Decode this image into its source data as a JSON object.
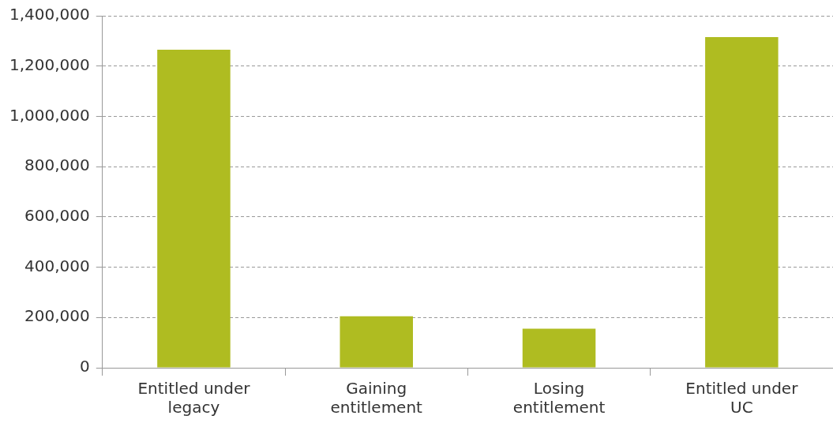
{
  "chart_data": {
    "type": "bar",
    "categories": [
      "Entitled under legacy",
      "Gaining entitlement",
      "Losing entitlement",
      "Entitled under UC"
    ],
    "values": [
      1265000,
      205000,
      155000,
      1315000
    ],
    "color": "#afbc21",
    "ylim": [
      0,
      1400000
    ],
    "yticks": [
      0,
      {
        "value": 200000,
        "label": "200,000"
      },
      {
        "value": 400000,
        "label": "400,000"
      },
      {
        "value": 600000,
        "label": "600,000"
      },
      {
        "value": 800000,
        "label": "800,000"
      },
      {
        "value": 1000000,
        "label": "1,000,000"
      },
      {
        "value": 1200000,
        "label": "1,200,000"
      },
      {
        "value": 1400000,
        "label": "1,400,000"
      }
    ],
    "grid": "y"
  }
}
